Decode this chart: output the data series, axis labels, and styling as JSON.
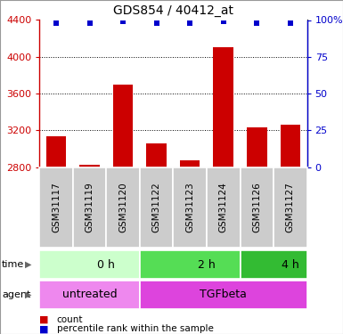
{
  "title": "GDS854 / 40412_at",
  "samples": [
    "GSM31117",
    "GSM31119",
    "GSM31120",
    "GSM31122",
    "GSM31123",
    "GSM31124",
    "GSM31126",
    "GSM31127"
  ],
  "counts": [
    3130,
    2820,
    3700,
    3060,
    2870,
    4100,
    3230,
    3260
  ],
  "percentile_ranks": [
    98,
    98,
    99,
    98,
    98,
    99,
    98,
    98
  ],
  "ylim_left": [
    2800,
    4400
  ],
  "ylim_right": [
    0,
    100
  ],
  "yticks_left": [
    2800,
    3200,
    3600,
    4000,
    4400
  ],
  "yticks_right": [
    0,
    25,
    50,
    75,
    100
  ],
  "bar_color": "#cc0000",
  "dot_color": "#0000cc",
  "time_group_info": [
    {
      "start": 0,
      "end": 3,
      "label": "0 h",
      "color": "#ccffcc"
    },
    {
      "start": 3,
      "end": 6,
      "label": "2 h",
      "color": "#55dd55"
    },
    {
      "start": 6,
      "end": 8,
      "label": "4 h",
      "color": "#33bb33"
    }
  ],
  "agent_group_info": [
    {
      "start": 0,
      "end": 3,
      "label": "untreated",
      "color": "#ee88ee"
    },
    {
      "start": 3,
      "end": 8,
      "label": "TGFbeta",
      "color": "#dd44dd"
    }
  ],
  "left_axis_color": "#cc0000",
  "right_axis_color": "#0000cc",
  "sample_box_color": "#cccccc",
  "legend_count_color": "#cc0000",
  "legend_pct_color": "#0000cc"
}
